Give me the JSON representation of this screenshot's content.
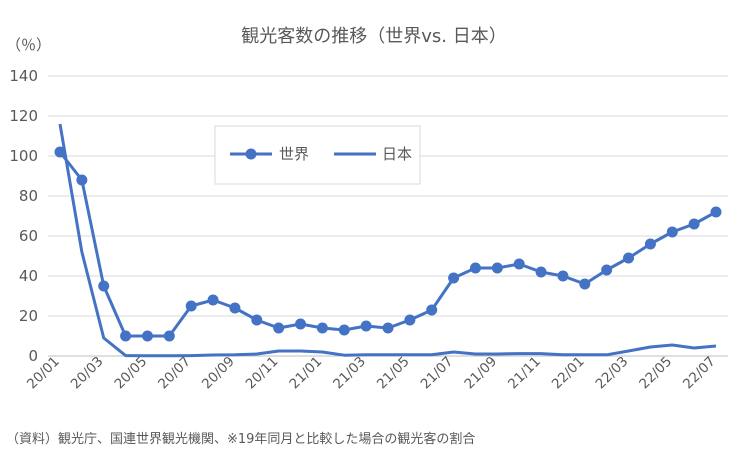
{
  "chart_data": {
    "type": "line",
    "title": "観光客数の推移（世界vs. 日本）",
    "unit_label": "（％）",
    "source": "（資料）観光庁、国連世界観光機関、※19年同月と比較した場合の観光客の割合",
    "ylim": [
      0,
      140
    ],
    "y_ticks": [
      0,
      20,
      40,
      60,
      80,
      100,
      120,
      140
    ],
    "grid": true,
    "legend_position": "upper-left-inside",
    "x": [
      "20/01",
      "20/02",
      "20/03",
      "20/04",
      "20/05",
      "20/06",
      "20/07",
      "20/08",
      "20/09",
      "20/10",
      "20/11",
      "20/12",
      "21/01",
      "21/02",
      "21/03",
      "21/04",
      "21/05",
      "21/06",
      "21/07",
      "21/08",
      "21/09",
      "21/10",
      "21/11",
      "21/12",
      "22/01",
      "22/02",
      "22/03",
      "22/04",
      "22/05",
      "22/06",
      "22/07"
    ],
    "x_tick_labels": [
      "20/01",
      "20/03",
      "20/05",
      "20/07",
      "20/09",
      "20/11",
      "21/01",
      "21/03",
      "21/05",
      "21/07",
      "21/09",
      "21/11",
      "22/01",
      "22/03",
      "22/05",
      "22/07"
    ],
    "series": [
      {
        "name": "世界",
        "color": "#4472C4",
        "marker": true,
        "values": [
          102,
          88,
          35,
          10,
          10,
          10,
          25,
          28,
          24,
          18,
          14,
          16,
          14,
          13,
          15,
          14,
          18,
          23,
          39,
          44,
          44,
          46,
          42,
          40,
          36,
          43,
          49,
          56,
          62,
          66,
          72
        ]
      },
      {
        "name": "日本",
        "color": "#4472C4",
        "marker": false,
        "values": [
          116,
          52,
          9,
          0.2,
          0.1,
          0.1,
          0.2,
          0.5,
          0.6,
          1.0,
          2.5,
          2.5,
          2.0,
          0.4,
          0.6,
          0.6,
          0.6,
          0.6,
          2.0,
          1.0,
          1.0,
          1.2,
          1.2,
          0.6,
          0.6,
          0.6,
          2.5,
          4.5,
          5.5,
          4.0,
          5.0
        ]
      }
    ]
  }
}
